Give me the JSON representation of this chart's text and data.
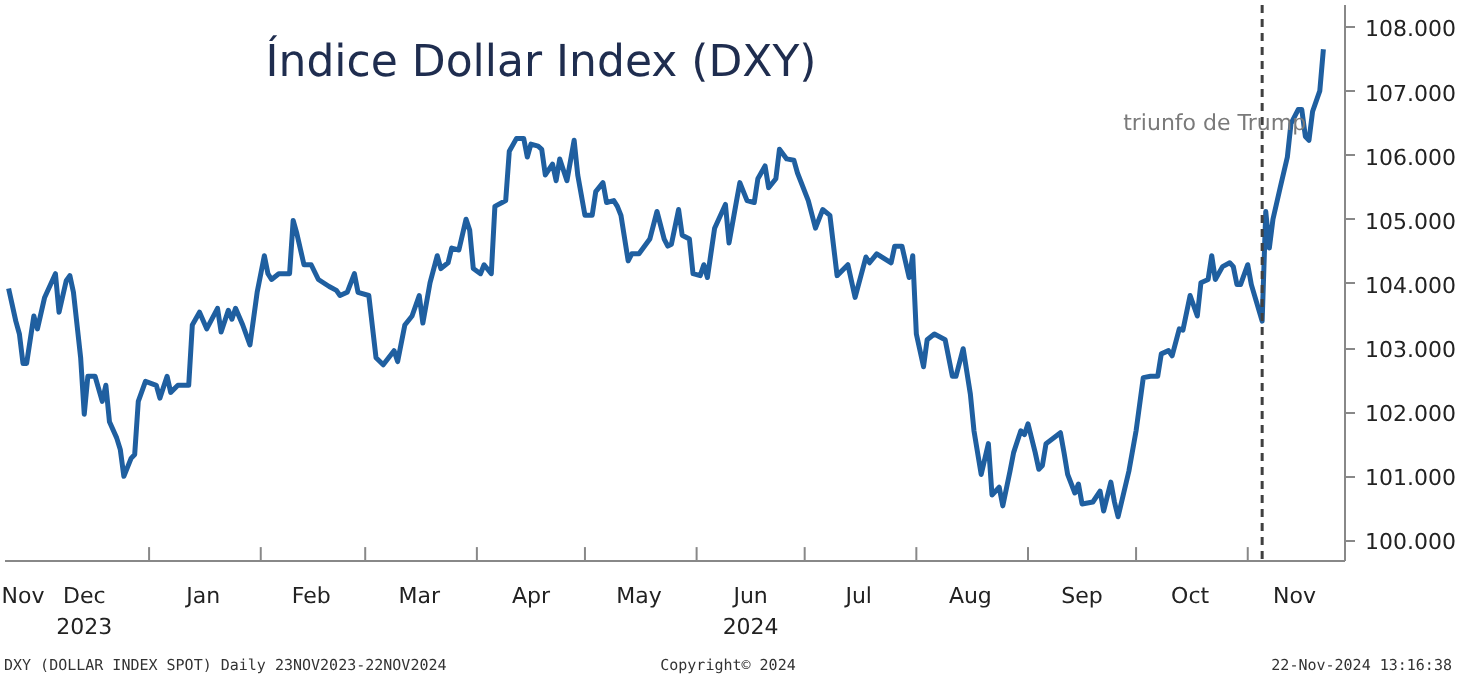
{
  "chart_data": {
    "type": "line",
    "title": "Índice Dollar Index (DXY)",
    "x": [
      "2023-11-23",
      "2023-11-25",
      "2023-11-26",
      "2023-11-27",
      "2023-11-28",
      "2023-11-30",
      "2023-12-01",
      "2023-12-03",
      "2023-12-06",
      "2023-12-07",
      "2023-12-09",
      "2023-12-10",
      "2023-12-11",
      "2023-12-13",
      "2023-12-14",
      "2023-12-15",
      "2023-12-17",
      "2023-12-19",
      "2023-12-20",
      "2023-12-21",
      "2023-12-23",
      "2023-12-24",
      "2023-12-25",
      "2023-12-27",
      "2023-12-28",
      "2023-12-29",
      "2023-12-31",
      "2024-01-03",
      "2024-01-04",
      "2024-01-06",
      "2024-01-07",
      "2024-01-09",
      "2024-01-12",
      "2024-01-13",
      "2024-01-15",
      "2024-01-17",
      "2024-01-20",
      "2024-01-21",
      "2024-01-23",
      "2024-01-24",
      "2024-01-25",
      "2024-01-27",
      "2024-01-29",
      "2024-01-31",
      "2024-02-02",
      "2024-02-03",
      "2024-02-04",
      "2024-02-06",
      "2024-02-09",
      "2024-02-10",
      "2024-02-11",
      "2024-02-13",
      "2024-02-15",
      "2024-02-17",
      "2024-02-20",
      "2024-02-22",
      "2024-02-23",
      "2024-02-25",
      "2024-02-27",
      "2024-02-28",
      "2024-03-02",
      "2024-03-04",
      "2024-03-06",
      "2024-03-09",
      "2024-03-10",
      "2024-03-12",
      "2024-03-14",
      "2024-03-16",
      "2024-03-17",
      "2024-03-19",
      "2024-03-21",
      "2024-03-22",
      "2024-03-24",
      "2024-03-25",
      "2024-03-27",
      "2024-03-29",
      "2024-03-30",
      "2024-03-31",
      "2024-04-02",
      "2024-04-03",
      "2024-04-05",
      "2024-04-06",
      "2024-04-08",
      "2024-04-09",
      "2024-04-10",
      "2024-04-12",
      "2024-04-14",
      "2024-04-15",
      "2024-04-16",
      "2024-04-18",
      "2024-04-19",
      "2024-04-20",
      "2024-04-22",
      "2024-04-23",
      "2024-04-24",
      "2024-04-26",
      "2024-04-28",
      "2024-04-29",
      "2024-05-01",
      "2024-05-03",
      "2024-05-04",
      "2024-05-06",
      "2024-05-07",
      "2024-05-09",
      "2024-05-10",
      "2024-05-11",
      "2024-05-13",
      "2024-05-14",
      "2024-05-16",
      "2024-05-19",
      "2024-05-21",
      "2024-05-23",
      "2024-05-24",
      "2024-05-25",
      "2024-05-27",
      "2024-05-28",
      "2024-05-30",
      "2024-05-31",
      "2024-06-02",
      "2024-06-03",
      "2024-06-04",
      "2024-06-06",
      "2024-06-09",
      "2024-06-10",
      "2024-06-12",
      "2024-06-13",
      "2024-06-15",
      "2024-06-17",
      "2024-06-18",
      "2024-06-20",
      "2024-06-21",
      "2024-06-23",
      "2024-06-24",
      "2024-06-26",
      "2024-06-28",
      "2024-06-29",
      "2024-07-02",
      "2024-07-04",
      "2024-07-06",
      "2024-07-08",
      "2024-07-10",
      "2024-07-13",
      "2024-07-15",
      "2024-07-18",
      "2024-07-19",
      "2024-07-21",
      "2024-07-25",
      "2024-07-26",
      "2024-07-28",
      "2024-07-30",
      "2024-07-31",
      "2024-08-01",
      "2024-08-03",
      "2024-08-04",
      "2024-08-06",
      "2024-08-09",
      "2024-08-11",
      "2024-08-12",
      "2024-08-14",
      "2024-08-16",
      "2024-08-17",
      "2024-08-19",
      "2024-08-21",
      "2024-08-22",
      "2024-08-24",
      "2024-08-25",
      "2024-08-27",
      "2024-08-28",
      "2024-08-30",
      "2024-08-31",
      "2024-09-01",
      "2024-09-03",
      "2024-09-04",
      "2024-09-05",
      "2024-09-06",
      "2024-09-10",
      "2024-09-11",
      "2024-09-12",
      "2024-09-14",
      "2024-09-15",
      "2024-09-16",
      "2024-09-19",
      "2024-09-21",
      "2024-09-22",
      "2024-09-24",
      "2024-09-25",
      "2024-09-26",
      "2024-09-29",
      "2024-10-01",
      "2024-10-03",
      "2024-10-05",
      "2024-10-07",
      "2024-10-08",
      "2024-10-10",
      "2024-10-11",
      "2024-10-13",
      "2024-10-14",
      "2024-10-16",
      "2024-10-18",
      "2024-10-19",
      "2024-10-21",
      "2024-10-22",
      "2024-10-23",
      "2024-10-25",
      "2024-10-27",
      "2024-10-28",
      "2024-10-29",
      "2024-10-30",
      "2024-11-01",
      "2024-11-02",
      "2024-11-05",
      "2024-11-06",
      "2024-11-07",
      "2024-11-08",
      "2024-11-10",
      "2024-11-12",
      "2024-11-13",
      "2024-11-15",
      "2024-11-16",
      "2024-11-17",
      "2024-11-18",
      "2024-11-19",
      "2024-11-21",
      "2024-11-22"
    ],
    "series": [
      {
        "color": "#1f5fa0",
        "values": [
          103.93,
          103.42,
          103.22,
          102.76,
          102.76,
          103.5,
          103.3,
          103.79,
          104.16,
          103.56,
          104.05,
          104.13,
          103.87,
          102.85,
          101.97,
          102.56,
          102.56,
          102.17,
          102.42,
          101.85,
          101.6,
          101.42,
          101.0,
          101.28,
          101.34,
          102.17,
          102.48,
          102.42,
          102.22,
          102.56,
          102.31,
          102.42,
          102.42,
          103.36,
          103.56,
          103.3,
          103.62,
          103.25,
          103.59,
          103.45,
          103.62,
          103.36,
          103.05,
          103.87,
          104.44,
          104.16,
          104.07,
          104.16,
          104.16,
          104.99,
          104.79,
          104.3,
          104.3,
          104.07,
          103.96,
          103.9,
          103.82,
          103.87,
          104.16,
          103.87,
          103.82,
          102.85,
          102.74,
          102.96,
          102.79,
          103.36,
          103.5,
          103.82,
          103.39,
          104.02,
          104.44,
          104.24,
          104.33,
          104.56,
          104.53,
          105.01,
          104.84,
          104.24,
          104.16,
          104.3,
          104.16,
          105.21,
          105.27,
          105.3,
          106.07,
          106.27,
          106.27,
          105.98,
          106.18,
          106.15,
          106.1,
          105.7,
          105.87,
          105.61,
          105.95,
          105.61,
          106.24,
          105.7,
          105.07,
          105.07,
          105.44,
          105.58,
          105.27,
          105.3,
          105.21,
          105.07,
          104.36,
          104.47,
          104.47,
          104.7,
          105.13,
          104.7,
          104.59,
          104.62,
          105.16,
          104.76,
          104.7,
          104.16,
          104.13,
          104.3,
          104.1,
          104.87,
          105.24,
          104.64,
          105.27,
          105.58,
          105.3,
          105.27,
          105.64,
          105.84,
          105.5,
          105.64,
          106.1,
          105.95,
          105.93,
          105.73,
          105.3,
          104.87,
          105.16,
          105.07,
          104.13,
          104.3,
          103.79,
          104.42,
          104.33,
          104.47,
          104.33,
          104.59,
          104.59,
          104.1,
          104.44,
          103.22,
          102.71,
          103.13,
          103.22,
          103.13,
          102.56,
          102.56,
          102.99,
          102.28,
          101.71,
          101.03,
          101.51,
          100.71,
          100.83,
          100.54,
          101.08,
          101.37,
          101.71,
          101.65,
          101.82,
          101.37,
          101.11,
          101.17,
          101.51,
          101.68,
          101.37,
          101.03,
          100.74,
          100.88,
          100.57,
          100.6,
          100.77,
          100.46,
          100.91,
          100.6,
          100.37,
          101.08,
          101.71,
          102.54,
          102.56,
          102.56,
          102.91,
          102.96,
          102.88,
          103.3,
          103.28,
          103.82,
          103.5,
          104.02,
          104.07,
          104.44,
          104.07,
          104.27,
          104.33,
          104.27,
          103.99,
          103.99,
          104.3,
          103.99,
          103.42,
          105.13,
          104.56,
          105.01,
          105.5,
          105.98,
          106.5,
          106.72,
          106.72,
          106.3,
          106.24,
          106.69,
          107.01,
          107.66
        ]
      }
    ],
    "xlim": [
      "2023-11-22",
      "2024-11-28"
    ],
    "xticks": [
      {
        "value": "2023-11-27",
        "label": "Nov"
      },
      {
        "value": "2023-12-14",
        "label": "Dec\n2023"
      },
      {
        "value": "2024-01-01",
        "label": null
      },
      {
        "value": "2024-01-16",
        "label": "Jan"
      },
      {
        "value": "2024-02-01",
        "label": null
      },
      {
        "value": "2024-02-15",
        "label": "Feb"
      },
      {
        "value": "2024-03-01",
        "label": null
      },
      {
        "value": "2024-03-16",
        "label": "Mar"
      },
      {
        "value": "2024-04-01",
        "label": null
      },
      {
        "value": "2024-04-16",
        "label": "Apr"
      },
      {
        "value": "2024-05-01",
        "label": null
      },
      {
        "value": "2024-05-16",
        "label": "May"
      },
      {
        "value": "2024-06-01",
        "label": null
      },
      {
        "value": "2024-06-16",
        "label": "Jun\n2024"
      },
      {
        "value": "2024-07-01",
        "label": null
      },
      {
        "value": "2024-07-16",
        "label": "Jul"
      },
      {
        "value": "2024-08-01",
        "label": null
      },
      {
        "value": "2024-08-16",
        "label": "Aug"
      },
      {
        "value": "2024-09-01",
        "label": null
      },
      {
        "value": "2024-09-16",
        "label": "Sep"
      },
      {
        "value": "2024-10-01",
        "label": null
      },
      {
        "value": "2024-10-16",
        "label": "Oct"
      },
      {
        "value": "2024-11-01",
        "label": null
      },
      {
        "value": "2024-11-14",
        "label": "Nov"
      }
    ],
    "ylim": [
      99.68,
      108.35
    ],
    "yticks": [
      {
        "value": 100,
        "label": "100.000"
      },
      {
        "value": 101,
        "label": "101.000"
      },
      {
        "value": 102,
        "label": "102.000"
      },
      {
        "value": 103,
        "label": "103.000"
      },
      {
        "value": 104,
        "label": "104.000"
      },
      {
        "value": 105,
        "label": "105.000"
      },
      {
        "value": 106,
        "label": "106.000"
      },
      {
        "value": 107,
        "label": "107.000"
      },
      {
        "value": 108,
        "label": "108.000"
      }
    ],
    "ref_lines": [
      {
        "axis": "x",
        "value": "2024-11-05",
        "label": "triunfo de Trump",
        "color": "#404040",
        "line_style": "dashed"
      }
    ],
    "annotations": [
      "DXY (DOLLAR INDEX SPOT)  Daily 23NOV2023-22NOV2024",
      "Copyright© 2024",
      "22-Nov-2024 13:16:38"
    ],
    "grid": false
  }
}
